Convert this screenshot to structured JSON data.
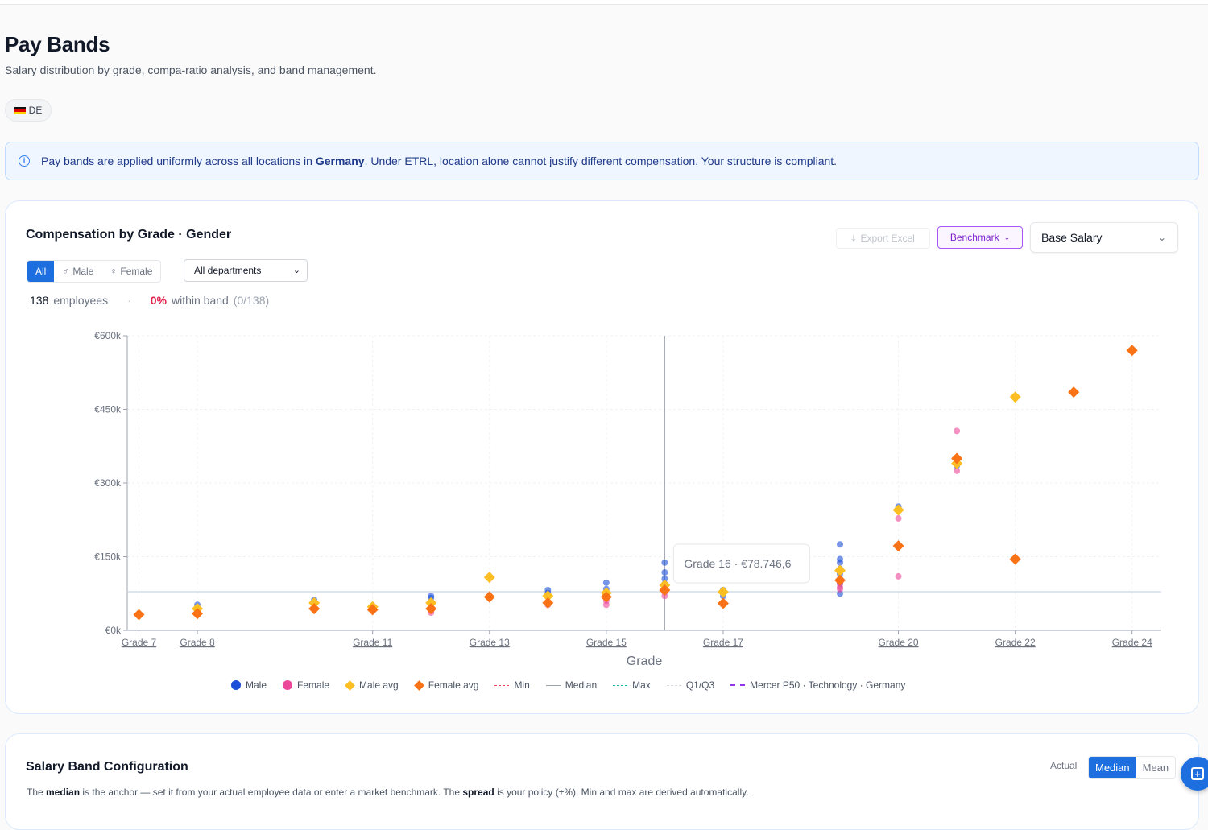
{
  "page": {
    "title": "Pay Bands",
    "subtitle": "Salary distribution by grade, compa-ratio analysis, and band management.",
    "location_chip": "DE"
  },
  "banner": {
    "icon": "info-icon",
    "text_before": "Pay bands are applied uniformly across all locations in ",
    "country": "Germany",
    "text_after": ". Under ETRL, location alone cannot justify different compensation. Your structure is compliant."
  },
  "chart_card": {
    "title": "Compensation by Grade · Gender",
    "export_label": "Export Excel",
    "benchmark_label": "Benchmark",
    "metric_select": "Base Salary",
    "gender_filter": [
      "All",
      "Male",
      "Female"
    ],
    "gender_selected": "All",
    "department_select": "All departments",
    "employee_count": "138",
    "employees_label": "employees",
    "within_band_pct": "0%",
    "within_band_label": "within band",
    "within_band_ratio": "(0/138)",
    "tooltip": "Grade 16 · €78.746,6"
  },
  "chart_data": {
    "type": "scatter",
    "xlabel": "Grade",
    "ylabel": "",
    "x_range": [
      6.8,
      24.5
    ],
    "ylim": [
      0,
      600000
    ],
    "y_ticks": [
      0,
      150000,
      300000,
      450000,
      600000
    ],
    "y_tick_labels": [
      "€0k",
      "€150k",
      "€300k",
      "€450k",
      "€600k"
    ],
    "x_tick_values": [
      7,
      8,
      11,
      13,
      15,
      17,
      20,
      22,
      24
    ],
    "x_tick_labels": [
      "Grade 7",
      "Grade 8",
      "Grade 11",
      "Grade 13",
      "Grade 15",
      "Grade 17",
      "Grade 20",
      "Grade 22",
      "Grade 24"
    ],
    "hover_grade": 16,
    "median_line": 78746.6,
    "series": [
      {
        "name": "Male",
        "color": "#1d4ed8",
        "marker": "circle",
        "points": [
          [
            8,
            52000
          ],
          [
            10,
            62000
          ],
          [
            11,
            48000
          ],
          [
            12,
            70000
          ],
          [
            12,
            66000
          ],
          [
            14,
            82000
          ],
          [
            14,
            76000
          ],
          [
            15,
            97000
          ],
          [
            15,
            84000
          ],
          [
            16,
            138000
          ],
          [
            16,
            118000
          ],
          [
            16,
            105000
          ],
          [
            16,
            95000
          ],
          [
            16,
            88000
          ],
          [
            16,
            80000
          ],
          [
            17,
            82000
          ],
          [
            17,
            70000
          ],
          [
            19,
            175000
          ],
          [
            19,
            145000
          ],
          [
            19,
            138000
          ],
          [
            19,
            125000
          ],
          [
            19,
            115000
          ],
          [
            19,
            105000
          ],
          [
            19,
            95000
          ],
          [
            19,
            75000
          ],
          [
            20,
            252000
          ],
          [
            21,
            335000
          ]
        ]
      },
      {
        "name": "Female",
        "color": "#ec4899",
        "marker": "circle",
        "points": [
          [
            8,
            38000
          ],
          [
            11,
            44000
          ],
          [
            12,
            36000
          ],
          [
            12,
            40000
          ],
          [
            14,
            52000
          ],
          [
            15,
            52000
          ],
          [
            15,
            60000
          ],
          [
            16,
            78000
          ],
          [
            16,
            70000
          ],
          [
            16,
            92000
          ],
          [
            17,
            56000
          ],
          [
            19,
            96000
          ],
          [
            19,
            88000
          ],
          [
            19,
            84000
          ],
          [
            20,
            228000
          ],
          [
            20,
            110000
          ],
          [
            21,
            406000
          ],
          [
            21,
            325000
          ]
        ]
      },
      {
        "name": "Male avg",
        "color": "#fbbf24",
        "marker": "diamond",
        "points": [
          [
            8,
            44000
          ],
          [
            10,
            56000
          ],
          [
            11,
            48000
          ],
          [
            12,
            56000
          ],
          [
            13,
            108000
          ],
          [
            14,
            70000
          ],
          [
            15,
            76000
          ],
          [
            16,
            92000
          ],
          [
            17,
            78000
          ],
          [
            19,
            122000
          ],
          [
            20,
            245000
          ],
          [
            21,
            340000
          ],
          [
            22,
            475000
          ]
        ]
      },
      {
        "name": "Female avg",
        "color": "#f97316",
        "marker": "diamond",
        "points": [
          [
            7,
            32000
          ],
          [
            8,
            34000
          ],
          [
            10,
            44000
          ],
          [
            11,
            42000
          ],
          [
            12,
            44000
          ],
          [
            13,
            68000
          ],
          [
            14,
            56000
          ],
          [
            15,
            68000
          ],
          [
            16,
            82000
          ],
          [
            17,
            55000
          ],
          [
            19,
            102000
          ],
          [
            20,
            172000
          ],
          [
            21,
            350000
          ],
          [
            22,
            145000
          ],
          [
            23,
            485000
          ],
          [
            24,
            570000
          ]
        ]
      }
    ],
    "legend": [
      "Male",
      "Female",
      "Male avg",
      "Female avg",
      "Min",
      "Median",
      "Max",
      "Q1/Q3",
      "Mercer P50 · Technology · Germany"
    ],
    "legend_colors": {
      "Male": "#1d4ed8",
      "Female": "#ec4899",
      "Male avg": "#fbbf24",
      "Female avg": "#f97316",
      "Min": "#f43f5e",
      "Median": "#9ca3af",
      "Max": "#14b8a6",
      "Q1/Q3": "#d1d5db",
      "Mercer P50 · Technology · Germany": "#9333ea"
    },
    "legend_placement": "bottom",
    "grid": true
  },
  "band_card": {
    "title": "Salary Band Configuration",
    "mode_label": "Actual",
    "modes": [
      "Median",
      "Mean"
    ],
    "mode_selected": "Median",
    "desc_1": "The ",
    "desc_median": "median",
    "desc_2": " is the anchor — set it from your actual employee data or enter a market benchmark. The ",
    "desc_spread": "spread",
    "desc_3": " is your policy (±%). Min and max are derived automatically."
  }
}
